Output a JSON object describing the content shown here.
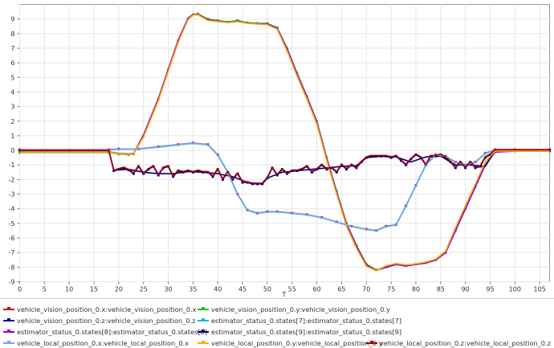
{
  "chart_data": {
    "type": "line",
    "title": "",
    "xlabel": "T",
    "ylabel": "",
    "xlim": [
      0,
      107
    ],
    "ylim": [
      -9,
      10
    ],
    "x_ticks": [
      0,
      5,
      10,
      15,
      20,
      25,
      30,
      35,
      40,
      45,
      50,
      55,
      60,
      65,
      70,
      75,
      80,
      85,
      90,
      95,
      100,
      105
    ],
    "y_ticks": [
      -9,
      -8,
      -7,
      -6,
      -5,
      -4,
      -3,
      -2,
      -1,
      0,
      1,
      2,
      3,
      4,
      5,
      6,
      7,
      8,
      9
    ],
    "grid": true,
    "legend_position": "bottom",
    "series": [
      {
        "name": "vehicle_vision_position_0.x:vehicle_vision_position_0.x",
        "color": "#cc0000",
        "marker": "square",
        "x": [
          0,
          18,
          20,
          24,
          28,
          32,
          35,
          38,
          40,
          42,
          44,
          46,
          48,
          50,
          52,
          55,
          58,
          61,
          64,
          67,
          70,
          72,
          74,
          76,
          78,
          80,
          82,
          84,
          86,
          88,
          90,
          92,
          94,
          96,
          100,
          107
        ],
        "y": [
          0.05,
          0.05,
          0.1,
          0.1,
          0.25,
          0.4,
          0.5,
          0.4,
          -0.3,
          -1.5,
          -3,
          -4.1,
          -4.3,
          -4.2,
          -4.2,
          -4.3,
          -4.4,
          -4.6,
          -4.9,
          -5.2,
          -5.4,
          -5.5,
          -5.2,
          -5.1,
          -3.8,
          -2.4,
          -1,
          -0.3,
          -0.4,
          -0.8,
          -1,
          -0.8,
          -0.2,
          0.05,
          0.05,
          0.05
        ]
      },
      {
        "name": "vehicle_vision_position_0.y:vehicle_vision_position_0.y",
        "color": "#22bb22",
        "marker": "square",
        "x": [
          0,
          18,
          20,
          22,
          23,
          25,
          28,
          30,
          32,
          34,
          35,
          36,
          38,
          40,
          42,
          44,
          46,
          48,
          50,
          52,
          54,
          56,
          58,
          60,
          62,
          64,
          66,
          68,
          70,
          72,
          74,
          76,
          78,
          80,
          82,
          84,
          86,
          88,
          90,
          92,
          94,
          96,
          100,
          107
        ],
        "y": [
          -0.15,
          -0.15,
          -0.25,
          -0.3,
          -0.25,
          1,
          3.5,
          5.5,
          7.5,
          9,
          9.3,
          9.35,
          9,
          8.9,
          8.8,
          8.9,
          8.75,
          8.7,
          8.7,
          8.4,
          7,
          5.3,
          3.7,
          2,
          -0.5,
          -2.8,
          -5,
          -6.5,
          -7.8,
          -8.2,
          -8,
          -7.8,
          -7.9,
          -7.8,
          -7.7,
          -7.5,
          -7,
          -5.5,
          -4,
          -2.5,
          -1,
          -0.1,
          -0.05,
          -0.05
        ]
      },
      {
        "name": "vehicle_vision_position_0.z:vehicle_vision_position_0.z",
        "color": "#000099",
        "marker": "square",
        "x": [
          0,
          18,
          19,
          20,
          21,
          22,
          23,
          24,
          25,
          26,
          27,
          28,
          29,
          30,
          31,
          32,
          33,
          34,
          35,
          36,
          37,
          38,
          39,
          40,
          41,
          42,
          43,
          44,
          45,
          46,
          47,
          48,
          49,
          50,
          51,
          52,
          53,
          54,
          55,
          56,
          57,
          58,
          59,
          60,
          61,
          62,
          63,
          64,
          65,
          66,
          67,
          68,
          69,
          70,
          71,
          72,
          73,
          74,
          75,
          76,
          77,
          78,
          79,
          80,
          81,
          82,
          83,
          84,
          85,
          86,
          87,
          88,
          89,
          90,
          91,
          92,
          93,
          94,
          95,
          96,
          97,
          100,
          107
        ],
        "y": [
          0,
          0,
          -1.4,
          -1.3,
          -1.2,
          -1.35,
          -1.6,
          -1.1,
          -1.6,
          -1.3,
          -1.1,
          -1.7,
          -1.2,
          -1.1,
          -1.8,
          -1.4,
          -1.5,
          -1.4,
          -1.5,
          -1.4,
          -1.5,
          -1.5,
          -1.8,
          -1.3,
          -2,
          -1.5,
          -2,
          -1.6,
          -2.2,
          -2.2,
          -2.3,
          -2.3,
          -2.3,
          -1.9,
          -1.2,
          -1.7,
          -1.3,
          -1.6,
          -1.4,
          -1.4,
          -1.3,
          -1.1,
          -1.5,
          -1.3,
          -1,
          -1.3,
          -1.2,
          -1.5,
          -1,
          -1.3,
          -1,
          -1.2,
          -0.8,
          -0.5,
          -0.4,
          -0.4,
          -0.4,
          -0.4,
          -0.5,
          -0.4,
          -0.7,
          -1,
          -0.6,
          -0.3,
          -0.5,
          -1,
          -0.4,
          -0.4,
          -0.3,
          -0.5,
          -0.8,
          -1.2,
          -0.8,
          -1.2,
          -0.8,
          -1.2,
          -1.1,
          -0.5,
          -0.3,
          0,
          0,
          0,
          0
        ]
      },
      {
        "name": "estimator_status_0.states[7]:estimator_status_0.states[7]",
        "color": "#00bbcc",
        "marker": "none",
        "x": [
          0,
          18,
          20,
          24,
          28,
          32,
          35,
          38,
          40,
          42,
          44,
          46,
          48,
          50,
          52,
          55,
          58,
          61,
          64,
          67,
          70,
          72,
          74,
          76,
          78,
          80,
          82,
          84,
          86,
          88,
          90,
          92,
          94,
          96,
          100,
          107
        ],
        "y": [
          0.02,
          0.02,
          0.08,
          0.08,
          0.22,
          0.38,
          0.48,
          0.38,
          -0.32,
          -1.52,
          -3.02,
          -4.12,
          -4.32,
          -4.22,
          -4.22,
          -4.32,
          -4.42,
          -4.62,
          -4.92,
          -5.22,
          -5.42,
          -5.52,
          -5.22,
          -5.12,
          -3.82,
          -2.42,
          -1.02,
          -0.32,
          -0.42,
          -0.82,
          -1.02,
          -0.82,
          -0.22,
          0.02,
          0.02,
          0.02
        ]
      },
      {
        "name": "estimator_status_0.states[8]:estimator_status_0.states[8]",
        "color": "#9900cc",
        "marker": "none",
        "x": [
          0,
          18,
          20,
          22,
          23,
          25,
          28,
          30,
          32,
          34,
          35,
          36,
          38,
          40,
          42,
          44,
          46,
          48,
          50,
          52,
          54,
          56,
          58,
          60,
          62,
          64,
          66,
          68,
          70,
          72,
          74,
          76,
          78,
          80,
          82,
          84,
          86,
          88,
          90,
          92,
          94,
          96,
          100,
          107
        ],
        "y": [
          -0.1,
          -0.1,
          -0.2,
          -0.25,
          -0.2,
          1.05,
          3.55,
          5.55,
          7.55,
          9.05,
          9.32,
          9.3,
          8.95,
          8.85,
          8.78,
          8.85,
          8.72,
          8.68,
          8.66,
          8.38,
          6.95,
          5.25,
          3.65,
          1.95,
          -0.55,
          -2.85,
          -5.05,
          -6.55,
          -7.85,
          -8.22,
          -8.02,
          -7.82,
          -7.92,
          -7.82,
          -7.72,
          -7.52,
          -7.02,
          -5.52,
          -4.02,
          -2.52,
          -1.02,
          -0.12,
          -0.05,
          -0.05
        ]
      },
      {
        "name": "estimator_status_0.states[9]:estimator_status_0.states[9]",
        "color": "#000066",
        "marker": "none",
        "x": [
          0,
          18,
          19,
          22,
          25,
          28,
          31,
          34,
          37,
          40,
          43,
          46,
          49,
          50,
          53,
          56,
          59,
          62,
          65,
          68,
          70,
          73,
          76,
          79,
          82,
          85,
          88,
          91,
          94,
          96,
          100,
          107
        ],
        "y": [
          0,
          0,
          -1.35,
          -1.3,
          -1.5,
          -1.6,
          -1.6,
          -1.45,
          -1.5,
          -1.6,
          -1.8,
          -2.2,
          -2.3,
          -1.9,
          -1.5,
          -1.4,
          -1.3,
          -1.2,
          -1.1,
          -1.05,
          -0.5,
          -0.4,
          -0.45,
          -0.8,
          -0.45,
          -0.4,
          -1,
          -1,
          -1.1,
          0,
          0,
          0
        ]
      },
      {
        "name": "vehicle_local_position_0.x:vehicle_local_position_0.x",
        "color": "#66aaff",
        "marker": "none",
        "x": [
          0,
          18,
          20,
          24,
          28,
          32,
          35,
          38,
          40,
          42,
          44,
          46,
          48,
          50,
          52,
          55,
          58,
          61,
          64,
          67,
          70,
          72,
          74,
          76,
          78,
          80,
          82,
          84,
          86,
          88,
          90,
          92,
          94,
          96,
          100,
          107
        ],
        "y": [
          0.04,
          0.04,
          0.09,
          0.09,
          0.24,
          0.39,
          0.49,
          0.39,
          -0.31,
          -1.51,
          -3.01,
          -4.11,
          -4.31,
          -4.21,
          -4.21,
          -4.31,
          -4.41,
          -4.61,
          -4.91,
          -5.21,
          -5.41,
          -5.51,
          -5.21,
          -5.11,
          -3.81,
          -2.41,
          -1.01,
          -0.31,
          -0.41,
          -0.81,
          -1.01,
          -0.81,
          -0.21,
          0.04,
          0.04,
          0.04
        ]
      },
      {
        "name": "vehicle_local_position_0.y:vehicle_local_position_0.y",
        "color": "#ffaa00",
        "marker": "none",
        "x": [
          0,
          18,
          20,
          22,
          23,
          25,
          28,
          30,
          32,
          34,
          35,
          36,
          38,
          40,
          42,
          44,
          46,
          48,
          50,
          52,
          54,
          56,
          58,
          60,
          62,
          64,
          66,
          68,
          70,
          72,
          74,
          76,
          78,
          80,
          82,
          84,
          86,
          88,
          90,
          92,
          94,
          96,
          100,
          107
        ],
        "y": [
          -0.12,
          -0.12,
          -0.22,
          -0.28,
          -0.22,
          0.9,
          3.4,
          5.4,
          7.4,
          8.95,
          9.28,
          9.28,
          8.9,
          8.82,
          8.75,
          8.82,
          8.7,
          8.65,
          8.62,
          8.3,
          6.8,
          5.1,
          3.5,
          1.8,
          -0.7,
          -3,
          -5.2,
          -6.7,
          -7.95,
          -8.25,
          -7.9,
          -7.75,
          -7.85,
          -7.78,
          -7.65,
          -7.45,
          -6.9,
          -5.3,
          -3.8,
          -2.3,
          -0.8,
          -0.05,
          -0.05,
          -0.05
        ]
      },
      {
        "name": "vehicle_local_position_0.z:vehicle_local_position_0.z",
        "color": "#aa0000",
        "marker": "none",
        "x": [
          0,
          18,
          19,
          20,
          21,
          22,
          23,
          24,
          25,
          26,
          27,
          28,
          29,
          30,
          31,
          32,
          33,
          34,
          35,
          36,
          37,
          38,
          39,
          40,
          41,
          42,
          43,
          44,
          45,
          46,
          47,
          48,
          49,
          50,
          51,
          52,
          53,
          54,
          55,
          56,
          57,
          58,
          59,
          60,
          61,
          62,
          63,
          64,
          65,
          66,
          67,
          68,
          69,
          70,
          71,
          72,
          73,
          74,
          75,
          76,
          77,
          78,
          79,
          80,
          81,
          82,
          83,
          84,
          85,
          86,
          87,
          88,
          89,
          90,
          91,
          92,
          93,
          94,
          95,
          96,
          97,
          100,
          107
        ],
        "y": [
          0,
          0,
          -1.35,
          -1.25,
          -1.15,
          -1.3,
          -1.55,
          -1.05,
          -1.55,
          -1.25,
          -1.05,
          -1.65,
          -1.15,
          -1.05,
          -1.75,
          -1.35,
          -1.45,
          -1.35,
          -1.45,
          -1.35,
          -1.45,
          -1.45,
          -1.75,
          -1.25,
          -1.95,
          -1.45,
          -1.95,
          -1.55,
          -2.15,
          -2.15,
          -2.25,
          -2.25,
          -2.25,
          -1.85,
          -1.15,
          -1.65,
          -1.25,
          -1.55,
          -1.35,
          -1.35,
          -1.25,
          -1.05,
          -1.45,
          -1.25,
          -0.95,
          -1.25,
          -1.15,
          -1.45,
          -0.95,
          -1.25,
          -0.95,
          -1.15,
          -0.75,
          -0.45,
          -0.35,
          -0.35,
          -0.35,
          -0.35,
          -0.45,
          -0.35,
          -0.65,
          -0.95,
          -0.55,
          -0.25,
          -0.45,
          -0.95,
          -0.35,
          -0.35,
          -0.25,
          -0.45,
          -0.75,
          -1.15,
          -0.75,
          -1.15,
          -0.75,
          -1.15,
          -1.05,
          -0.45,
          -0.25,
          0.05,
          0.05,
          0.05,
          0.05
        ]
      }
    ]
  },
  "legend": {
    "rows": [
      [
        0,
        1
      ],
      [
        2,
        3
      ],
      [
        4,
        5
      ],
      [
        6,
        7,
        8
      ]
    ]
  }
}
